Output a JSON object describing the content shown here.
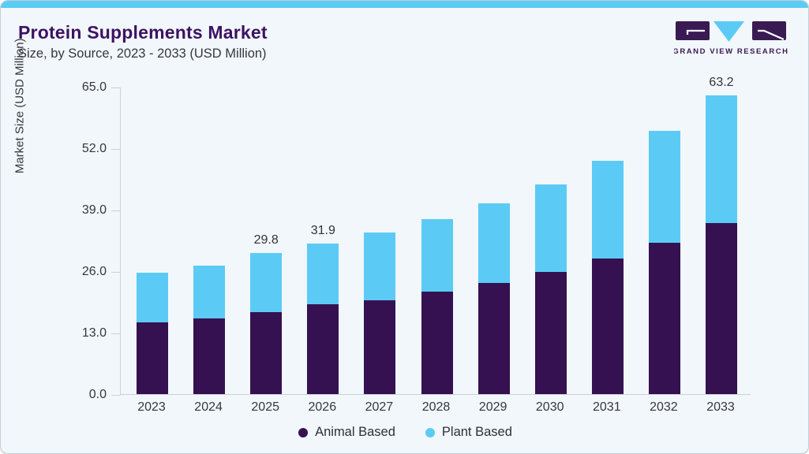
{
  "header": {
    "title": "Protein Supplements Market",
    "subtitle": "Size, by Source, 2023 - 2033 (USD Million)"
  },
  "logo": {
    "brand": "GRAND VIEW RESEARCH"
  },
  "colors": {
    "accent": "#5BCBF5",
    "brand_purple": "#3A1A52",
    "title_purple": "#3D1262",
    "axis_line": "#C9D2D8",
    "animal_based": "#351151",
    "plant_based": "#5BCBF5"
  },
  "chart_data": {
    "type": "bar",
    "stacked": true,
    "title": "Protein Supplements Market Size, by Source, 2023 - 2033 (USD Million)",
    "categories": [
      "2023",
      "2024",
      "2025",
      "2026",
      "2027",
      "2028",
      "2029",
      "2030",
      "2031",
      "2032",
      "2033"
    ],
    "series": [
      {
        "name": "Animal Based",
        "color": "#351151",
        "values": [
          15.2,
          16.0,
          17.4,
          19.0,
          19.9,
          21.6,
          23.5,
          25.9,
          28.6,
          32.0,
          36.2
        ]
      },
      {
        "name": "Plant Based",
        "color": "#5BCBF5",
        "values": [
          10.4,
          11.1,
          12.4,
          12.9,
          14.3,
          15.4,
          16.8,
          18.4,
          20.8,
          23.6,
          27.0
        ]
      }
    ],
    "totals": [
      25.6,
      27.1,
      29.8,
      31.9,
      34.2,
      37.0,
      40.3,
      44.3,
      49.4,
      55.6,
      63.2
    ],
    "total_labels_shown": [
      null,
      null,
      "29.8",
      "31.9",
      null,
      null,
      null,
      null,
      null,
      null,
      "63.2"
    ],
    "ylabel": "Market Size (USD Million)",
    "yticks": [
      0,
      13,
      26,
      39,
      52,
      65
    ],
    "ytick_labels": [
      "0.0",
      "13.0",
      "26.0",
      "39.0",
      "52.0",
      "65.0"
    ],
    "ylim": [
      0,
      65
    ],
    "grid": false,
    "legend_position": "bottom"
  }
}
